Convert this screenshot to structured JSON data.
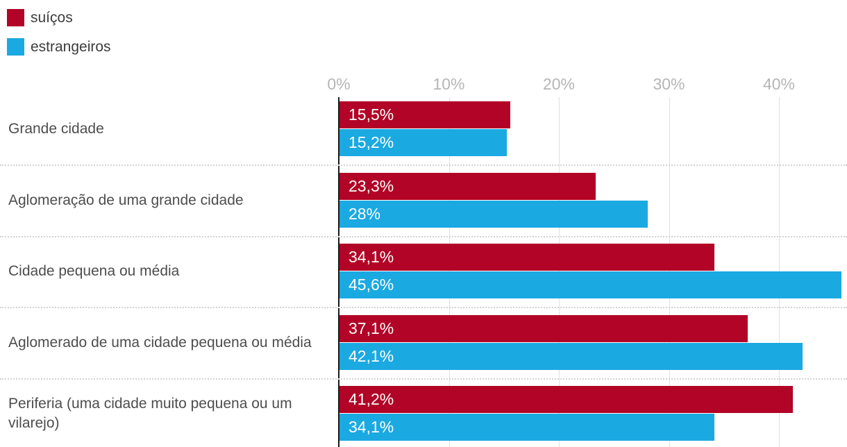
{
  "legend": {
    "items": [
      {
        "label": "suíços",
        "color": "#b20426"
      },
      {
        "label": "estrangeiros",
        "color": "#1ba9e1"
      }
    ]
  },
  "chart_data": {
    "type": "bar",
    "orientation": "horizontal",
    "title": "",
    "xlabel": "",
    "ylabel": "",
    "categories": [
      "Grande cidade",
      "Aglomeração de uma grande cidade",
      "Cidade pequena ou média",
      "Aglomerado de uma cidade pequena ou média",
      "Periferia (uma cidade muito pequena ou um vilarejo)"
    ],
    "series": [
      {
        "name": "suíços",
        "color": "#b20426",
        "values": [
          15.5,
          23.3,
          34.1,
          37.1,
          41.2
        ],
        "labels": [
          "15,5%",
          "23,3%",
          "34,1%",
          "37,1%",
          "41,2%"
        ]
      },
      {
        "name": "estrangeiros",
        "color": "#1ba9e1",
        "values": [
          15.2,
          28,
          45.6,
          42.1,
          34.1
        ],
        "labels": [
          "15,2%",
          "28%",
          "45,6%",
          "42,1%",
          "34,1%"
        ]
      }
    ],
    "x_ticks": [
      {
        "value": 0,
        "label": "0%"
      },
      {
        "value": 10,
        "label": "10%"
      },
      {
        "value": 20,
        "label": "20%"
      },
      {
        "value": 30,
        "label": "30%"
      },
      {
        "value": 40,
        "label": "40%"
      }
    ],
    "xlim": [
      0,
      46.2
    ],
    "grid": true,
    "legend_position": "top-left"
  },
  "colors": {
    "series_red": "#b20426",
    "series_blue": "#1ba9e1",
    "axis_line": "#1a1a1a",
    "gridline": "#e0e0e0",
    "tick_label": "#b5b5b5",
    "category_label": "#4d4d4d",
    "separator": "#d2d2d2",
    "bar_value_text": "#ffffff",
    "background": "#ffffff"
  }
}
